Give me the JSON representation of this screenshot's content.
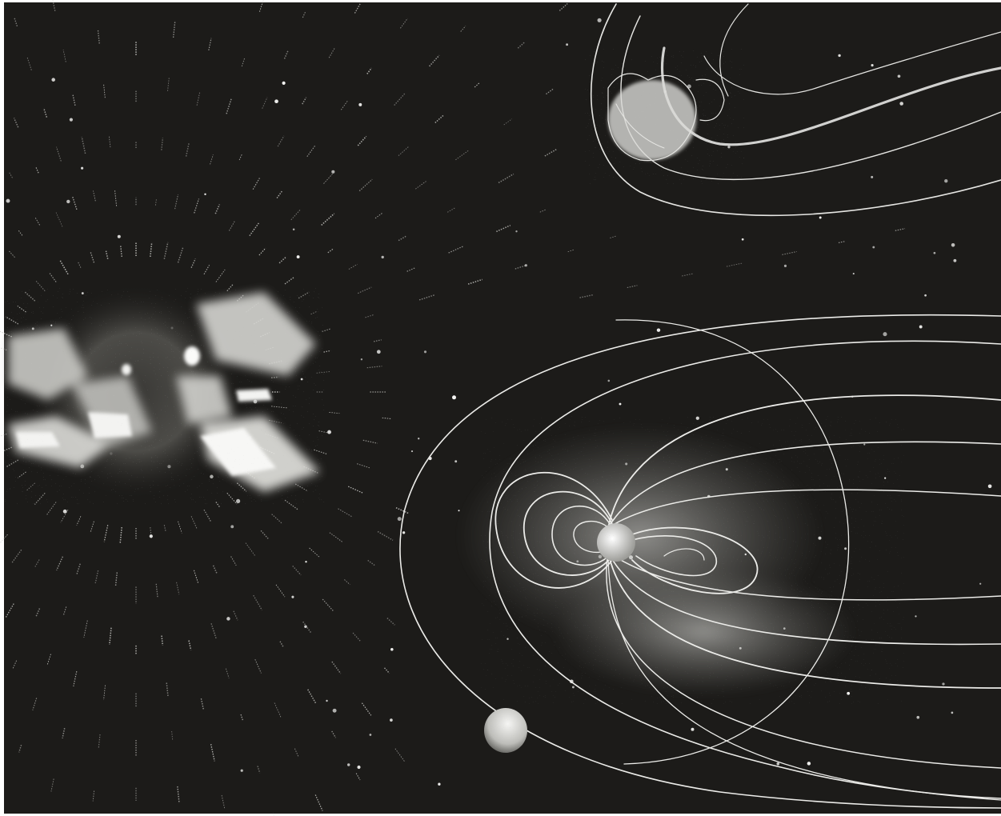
{
  "image": {
    "description_free": true,
    "colors": {
      "space": "#1c1b19",
      "frame": "#ffffff",
      "ink": "#f2f2f0",
      "glow": "#d9d9d6",
      "dim": "#8f8f8b"
    },
    "elements": {
      "sun": "sun-corona",
      "wind": "solar-wind-rays",
      "stars": "star-field",
      "earth": "earth-magnetosphere",
      "comet": "comet-magnetosphere",
      "moon": "moon"
    }
  }
}
